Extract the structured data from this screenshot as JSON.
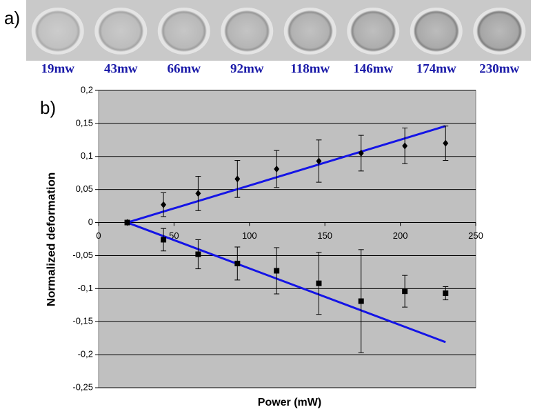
{
  "panel_a": {
    "label": "a)",
    "labels": [
      "19mw",
      "43mw",
      "66mw",
      "92mw",
      "118mw",
      "146mw",
      "174mw",
      "230mw"
    ]
  },
  "chart_data": {
    "type": "scatter",
    "panel_label": "b)",
    "x_label": "Power (mW)",
    "y_label": "Normalized deformation",
    "xlim": [
      0,
      250
    ],
    "xticks": [
      0,
      50,
      100,
      150,
      200,
      250
    ],
    "ylim": [
      -0.25,
      0.2
    ],
    "yticks": [
      {
        "value": -0.25,
        "label": "-0,25"
      },
      {
        "value": -0.2,
        "label": "-0,2"
      },
      {
        "value": -0.15,
        "label": "-0,15"
      },
      {
        "value": -0.1,
        "label": "-0,1"
      },
      {
        "value": -0.05,
        "label": "-0,05"
      },
      {
        "value": 0,
        "label": "0"
      },
      {
        "value": 0.05,
        "label": "0,05"
      },
      {
        "value": 0.1,
        "label": "0,1"
      },
      {
        "value": 0.15,
        "label": "0,15"
      },
      {
        "value": 0.2,
        "label": "0,2"
      }
    ],
    "grid": true,
    "series": [
      {
        "style": "markers",
        "marker": "diamond",
        "color": "#000000",
        "x": [
          19,
          43,
          66,
          92,
          118,
          146,
          174,
          203,
          230
        ],
        "values": [
          0,
          0.027,
          0.044,
          0.066,
          0.081,
          0.093,
          0.105,
          0.116,
          0.12
        ],
        "errors": [
          0,
          0.018,
          0.026,
          0.028,
          0.028,
          0.032,
          0.027,
          0.027,
          0.026
        ]
      },
      {
        "style": "markers",
        "marker": "square",
        "color": "#000000",
        "x": [
          19,
          43,
          66,
          92,
          118,
          146,
          174,
          203,
          230
        ],
        "values": [
          0,
          -0.026,
          -0.048,
          -0.062,
          -0.073,
          -0.092,
          -0.119,
          -0.104,
          -0.107
        ],
        "errors": [
          0,
          0.017,
          0.022,
          0.025,
          0.035,
          0.047,
          0.078,
          0.024,
          0.01
        ]
      },
      {
        "style": "line",
        "color": "#1414e6",
        "x": [
          19,
          230
        ],
        "values": [
          0,
          0.146
        ]
      },
      {
        "style": "line",
        "color": "#1414e6",
        "x": [
          19,
          230
        ],
        "values": [
          0,
          -0.181
        ]
      }
    ]
  }
}
